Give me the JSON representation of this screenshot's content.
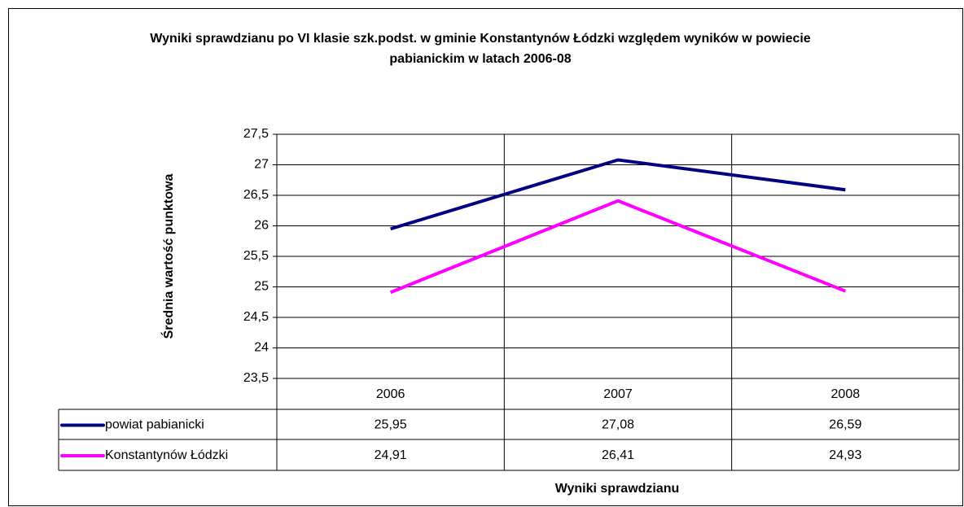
{
  "chart_data": {
    "type": "line",
    "title": "Wyniki sprawdzianu po VI klasie szk.podst. w gminie Konstantynów Łódzki względem wyników w powiecie pabianickim w latach 2006-08",
    "y_label": "Średnia wartość punktowa",
    "x_label": "Wyniki sprawdzianu",
    "categories": [
      "2006",
      "2007",
      "2008"
    ],
    "series": [
      {
        "name": "powiat pabianicki",
        "color": "#000080",
        "values": [
          25.95,
          27.08,
          26.59
        ],
        "value_labels": [
          "25,95",
          "27,08",
          "26,59"
        ]
      },
      {
        "name": "Konstantynów Łódzki",
        "color": "#ff00ff",
        "values": [
          24.91,
          26.41,
          24.93
        ],
        "value_labels": [
          "24,91",
          "26,41",
          "24,93"
        ]
      }
    ],
    "ylim": [
      23.5,
      27.5
    ],
    "yticks": [
      {
        "value": 23.5,
        "label": "23,5"
      },
      24,
      {
        "value": 24.5,
        "label": "24,5"
      },
      25,
      {
        "value": 25.5,
        "label": "25,5"
      },
      26,
      {
        "value": 26.5,
        "label": "26,5"
      },
      27,
      {
        "value": 27.5,
        "label": "27,5"
      }
    ],
    "grid": true
  }
}
